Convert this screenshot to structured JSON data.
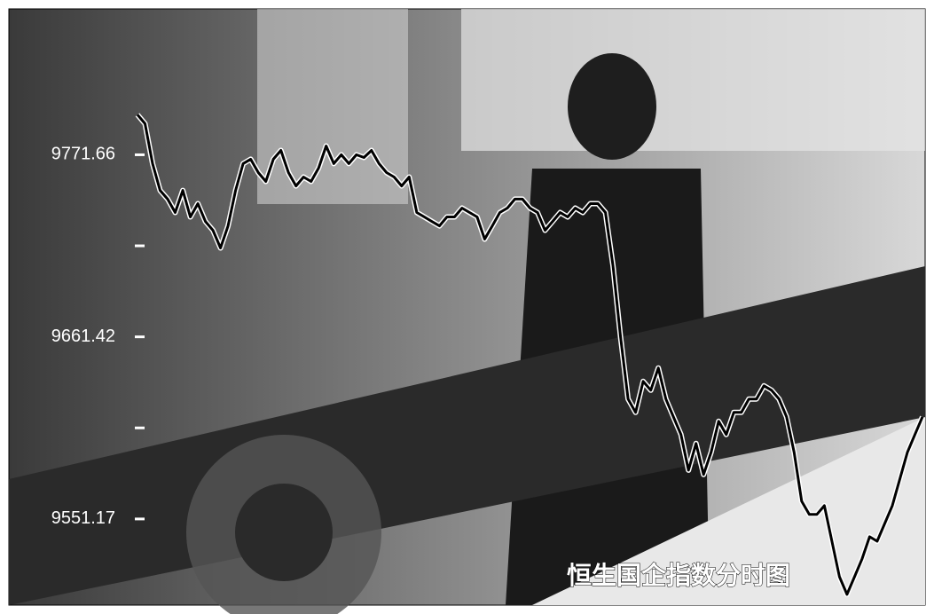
{
  "chart_data": {
    "type": "line",
    "title": "恒生国企指数分时图",
    "ylim": [
      9499,
      9860
    ],
    "yticks": [
      9771.66,
      9661.42,
      9551.17
    ],
    "minor_yticks": [
      9716.54,
      9606.3
    ],
    "series": [
      {
        "color": "#000000",
        "values": [
          9795.9,
          9790.5,
          9766.3,
          9750.1,
          9744.8,
          9736.7,
          9750.1,
          9734.0,
          9742.1,
          9731.3,
          9725.9,
          9715.2,
          9728.6,
          9750.1,
          9766.3,
          9769.0,
          9760.9,
          9755.5,
          9769.0,
          9774.3,
          9760.9,
          9752.8,
          9758.2,
          9755.5,
          9763.6,
          9777.0,
          9766.3,
          9771.7,
          9766.3,
          9771.7,
          9770.0,
          9774.3,
          9766.3,
          9760.9,
          9758.2,
          9752.8,
          9758.2,
          9736.7,
          9734.0,
          9731.3,
          9728.6,
          9734.0,
          9734.0,
          9739.4,
          9736.7,
          9734.0,
          9720.6,
          9728.6,
          9736.7,
          9739.4,
          9744.8,
          9744.8,
          9739.4,
          9736.7,
          9725.9,
          9731.3,
          9736.7,
          9734.0,
          9739.4,
          9736.7,
          9742.1,
          9742.1,
          9736.7,
          9704.4,
          9661.4,
          9623.8,
          9615.7,
          9634.5,
          9629.1,
          9642.6,
          9623.8,
          9613.0,
          9602.3,
          9580.7,
          9596.9,
          9578.1,
          9591.5,
          9610.3,
          9602.3,
          9615.7,
          9615.7,
          9623.8,
          9623.8,
          9631.8,
          9629.1,
          9623.8,
          9613.0,
          9591.5,
          9561.9,
          9553.9,
          9553.9,
          9559.2,
          9537.7,
          9516.2,
          9505.5,
          9516.2,
          9527.0,
          9540.4,
          9537.7,
          9548.5,
          9559.2,
          9575.4,
          9591.5,
          9602.3,
          9613.0
        ]
      }
    ]
  }
}
